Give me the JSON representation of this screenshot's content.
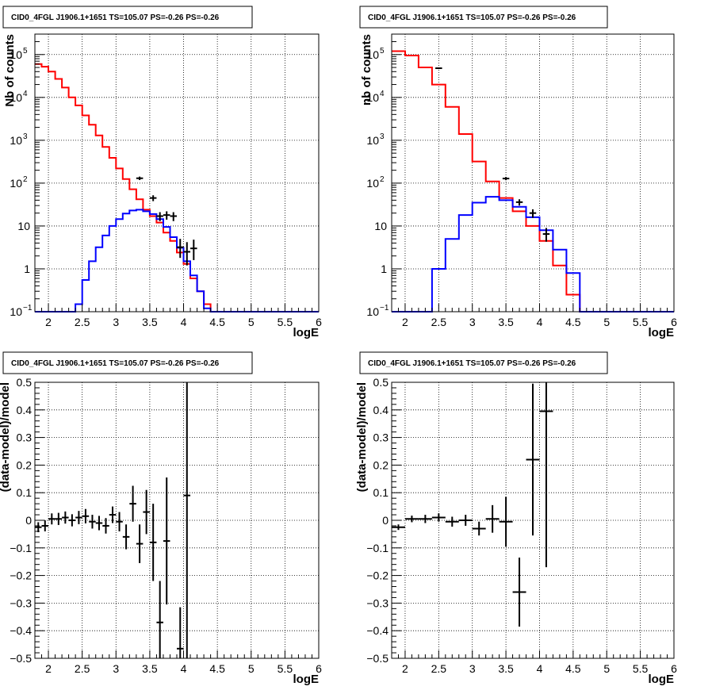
{
  "page_title": "CID0_4FGL J1906.1+1651 TS=105.07 PS=-0.26 PS=-0.26",
  "colors": {
    "model_total": "#ff0000",
    "model_source": "#0000ff",
    "data": "#000000",
    "grid": "#000000"
  },
  "chart_data": [
    {
      "id": "counts-left",
      "type": "line",
      "title": "CID0_4FGL J1906.1+1651 TS=105.07 PS=-0.26 PS=-0.26",
      "xlabel": "logE",
      "ylabel": "Nb of counts",
      "xlim": [
        1.8,
        6
      ],
      "ylim": [
        0.1,
        300000
      ],
      "yscale": "log",
      "grid": true,
      "x_ticks": [
        "2",
        "2.5",
        "3",
        "3.5",
        "4",
        "4.5",
        "5",
        "5.5",
        "6"
      ],
      "y_ticks": [
        {
          "value": 0.1,
          "label": "10",
          "sup": "−1"
        },
        {
          "value": 1,
          "label": "1",
          "sup": ""
        },
        {
          "value": 10,
          "label": "10",
          "sup": ""
        },
        {
          "value": 100,
          "label": "10",
          "sup": "2"
        },
        {
          "value": 1000,
          "label": "10",
          "sup": "3"
        },
        {
          "value": 10000,
          "label": "10",
          "sup": "4"
        },
        {
          "value": 100000,
          "label": "10",
          "sup": "5"
        }
      ],
      "bin_edges": [
        1.8,
        1.9,
        2.0,
        2.1,
        2.2,
        2.3,
        2.4,
        2.5,
        2.6,
        2.7,
        2.8,
        2.9,
        3.0,
        3.1,
        3.2,
        3.3,
        3.4,
        3.5,
        3.6,
        3.7,
        3.8,
        3.9,
        4.0,
        4.1,
        4.2,
        4.3,
        4.4,
        4.5,
        4.6,
        4.7,
        4.8,
        4.9,
        5.0,
        5.1,
        5.2,
        5.3,
        5.4,
        5.5,
        5.6,
        5.7,
        5.8,
        5.9,
        6.0
      ],
      "series": [
        {
          "name": "",
          "role": "model_total",
          "style": "step",
          "values": [
            60000,
            52000,
            40000,
            27000,
            17000,
            10000,
            6500,
            3800,
            2300,
            1300,
            700,
            390,
            220,
            125,
            72,
            42,
            24,
            17,
            12,
            7,
            4.5,
            2.4,
            1.3,
            0.6,
            0.3,
            0.15,
            0.1,
            0.1,
            0.1,
            0.1,
            0.1,
            0.1,
            0.1,
            0.1,
            0.1,
            0.1,
            0.1,
            0.1,
            0.1,
            0.1,
            0.1,
            0.1
          ]
        },
        {
          "name": "",
          "role": "model_source",
          "style": "step",
          "values": [
            0.1,
            0.1,
            0.1,
            0.1,
            0.1,
            0.1,
            0.15,
            0.55,
            1.5,
            3.2,
            6,
            10,
            14.5,
            19.5,
            23,
            24,
            22,
            19,
            14.5,
            9.5,
            5.5,
            3.1,
            1.5,
            0.7,
            0.3,
            0.12,
            0.1,
            0.1,
            0.1,
            0.1,
            0.1,
            0.1,
            0.1,
            0.1,
            0.1,
            0.1,
            0.1,
            0.1,
            0.1,
            0.1,
            0.1,
            0.1
          ]
        },
        {
          "name": "",
          "role": "data",
          "style": "errorbar",
          "points": [
            {
              "x": 3.35,
              "y": 130,
              "ylo": 118,
              "yhi": 142
            },
            {
              "x": 3.55,
              "y": 45,
              "ylo": 38,
              "yhi": 52
            },
            {
              "x": 3.65,
              "y": 17,
              "ylo": 13,
              "yhi": 21
            },
            {
              "x": 3.75,
              "y": 18,
              "ylo": 14,
              "yhi": 22
            },
            {
              "x": 3.85,
              "y": 17,
              "ylo": 13,
              "yhi": 21
            },
            {
              "x": 3.95,
              "y": 3.2,
              "ylo": 1.8,
              "yhi": 5
            },
            {
              "x": 4.05,
              "y": 2.5,
              "ylo": 1.2,
              "yhi": 4.2
            },
            {
              "x": 4.15,
              "y": 3,
              "ylo": 1.6,
              "yhi": 4.8
            }
          ]
        }
      ]
    },
    {
      "id": "counts-right",
      "type": "line",
      "title": "CID0_4FGL J1906.1+1651 TS=105.07 PS=-0.26 PS=-0.26",
      "xlabel": "logE",
      "ylabel": "nb of counts",
      "xlim": [
        1.8,
        6
      ],
      "ylim": [
        0.1,
        300000
      ],
      "yscale": "log",
      "grid": true,
      "x_ticks": [
        "2",
        "2.5",
        "3",
        "3.5",
        "4",
        "4.5",
        "5",
        "5.5",
        "6"
      ],
      "y_ticks": [
        {
          "value": 0.1,
          "label": "10",
          "sup": "−1"
        },
        {
          "value": 1,
          "label": "1",
          "sup": ""
        },
        {
          "value": 10,
          "label": "10",
          "sup": ""
        },
        {
          "value": 100,
          "label": "10",
          "sup": "2"
        },
        {
          "value": 1000,
          "label": "10",
          "sup": "3"
        },
        {
          "value": 10000,
          "label": "10",
          "sup": "4"
        },
        {
          "value": 100000,
          "label": "10",
          "sup": "5"
        }
      ],
      "bin_edges": [
        1.8,
        2.0,
        2.2,
        2.4,
        2.6,
        2.8,
        3.0,
        3.2,
        3.4,
        3.6,
        3.8,
        4.0,
        4.2,
        4.4,
        4.6,
        4.8,
        5.0,
        5.2,
        5.4,
        5.6,
        5.8,
        6.0
      ],
      "series": [
        {
          "name": "",
          "role": "model_total",
          "style": "step",
          "values": [
            120000,
            95000,
            50000,
            20000,
            6000,
            1400,
            320,
            110,
            45,
            22,
            10,
            4.5,
            1.2,
            0.25,
            0.1,
            0.1,
            0.1,
            0.1,
            0.1,
            0.1,
            0.1
          ]
        },
        {
          "name": "",
          "role": "model_source",
          "style": "step",
          "values": [
            0.1,
            0.1,
            0.1,
            1,
            5,
            18,
            35,
            48,
            40,
            28,
            16,
            8,
            2.8,
            0.8,
            0.1,
            0.1,
            0.1,
            0.1,
            0.1,
            0.1,
            0.1
          ]
        },
        {
          "name": "",
          "role": "data",
          "style": "errorbar",
          "points": [
            {
              "x": 2.5,
              "y": 48000,
              "ylo": 46500,
              "yhi": 49500
            },
            {
              "x": 3.5,
              "y": 128,
              "ylo": 117,
              "yhi": 139
            },
            {
              "x": 3.7,
              "y": 36,
              "ylo": 30,
              "yhi": 42
            },
            {
              "x": 3.9,
              "y": 20,
              "ylo": 15.5,
              "yhi": 24.5
            },
            {
              "x": 4.1,
              "y": 6.5,
              "ylo": 4.3,
              "yhi": 9
            }
          ]
        }
      ]
    },
    {
      "id": "residuals-left",
      "type": "scatter",
      "title": "CID0_4FGL J1906.1+1651 TS=105.07 PS=-0.26 PS=-0.26",
      "xlabel": "logE",
      "ylabel": "(data-model)/model",
      "xlim": [
        1.8,
        6
      ],
      "ylim": [
        -0.5,
        0.5
      ],
      "grid": true,
      "x_ticks": [
        "2",
        "2.5",
        "3",
        "3.5",
        "4",
        "4.5",
        "5",
        "5.5",
        "6"
      ],
      "y_ticks": [
        "−0.5",
        "−0.4",
        "−0.3",
        "−0.2",
        "−0.1",
        "0",
        "0.1",
        "0.2",
        "0.3",
        "0.4",
        "0.5"
      ],
      "x_half_width": 0.05,
      "series": [
        {
          "name": "",
          "role": "data",
          "points": [
            {
              "x": 1.85,
              "y": -0.025,
              "err": 0.018
            },
            {
              "x": 1.95,
              "y": -0.02,
              "err": 0.02
            },
            {
              "x": 2.05,
              "y": 0.005,
              "err": 0.02
            },
            {
              "x": 2.15,
              "y": 0.005,
              "err": 0.022
            },
            {
              "x": 2.25,
              "y": 0.01,
              "err": 0.022
            },
            {
              "x": 2.35,
              "y": 0.0,
              "err": 0.022
            },
            {
              "x": 2.45,
              "y": 0.01,
              "err": 0.024
            },
            {
              "x": 2.55,
              "y": 0.015,
              "err": 0.026
            },
            {
              "x": 2.65,
              "y": -0.005,
              "err": 0.025
            },
            {
              "x": 2.75,
              "y": -0.01,
              "err": 0.026
            },
            {
              "x": 2.85,
              "y": -0.02,
              "err": 0.028
            },
            {
              "x": 2.95,
              "y": 0.02,
              "err": 0.03
            },
            {
              "x": 3.05,
              "y": -0.005,
              "err": 0.035
            },
            {
              "x": 3.15,
              "y": -0.06,
              "err": 0.045
            },
            {
              "x": 3.25,
              "y": 0.06,
              "err": 0.065
            },
            {
              "x": 3.35,
              "y": -0.085,
              "err": 0.07
            },
            {
              "x": 3.45,
              "y": 0.03,
              "err": 0.08
            },
            {
              "x": 3.55,
              "y": -0.08,
              "err": 0.14
            },
            {
              "x": 3.65,
              "y": -0.37,
              "err": 0.15
            },
            {
              "x": 3.75,
              "y": -0.075,
              "err": 0.23
            },
            {
              "x": 3.95,
              "y": -0.465,
              "err": 0.15
            },
            {
              "x": 4.05,
              "y": 0.09,
              "err": 0.6
            }
          ]
        }
      ]
    },
    {
      "id": "residuals-right",
      "type": "scatter",
      "title": "CID0_4FGL J1906.1+1651 TS=105.07 PS=-0.26 PS=-0.26",
      "xlabel": "logE",
      "ylabel": "(data-model)/model",
      "xlim": [
        1.8,
        6
      ],
      "ylim": [
        -0.5,
        0.5
      ],
      "grid": true,
      "x_ticks": [
        "2",
        "2.5",
        "3",
        "3.5",
        "4",
        "4.5",
        "5",
        "5.5",
        "6"
      ],
      "y_ticks": [
        "−0.5",
        "−0.4",
        "−0.3",
        "−0.2",
        "−0.1",
        "0",
        "0.1",
        "0.2",
        "0.3",
        "0.4",
        "0.5"
      ],
      "x_half_width": 0.1,
      "series": [
        {
          "name": "",
          "role": "data",
          "points": [
            {
              "x": 1.9,
              "y": -0.025,
              "err": 0.01
            },
            {
              "x": 2.1,
              "y": 0.005,
              "err": 0.012
            },
            {
              "x": 2.3,
              "y": 0.005,
              "err": 0.015
            },
            {
              "x": 2.5,
              "y": 0.01,
              "err": 0.015
            },
            {
              "x": 2.7,
              "y": -0.005,
              "err": 0.018
            },
            {
              "x": 2.9,
              "y": 0.0,
              "err": 0.02
            },
            {
              "x": 3.1,
              "y": -0.03,
              "err": 0.025
            },
            {
              "x": 3.3,
              "y": 0.005,
              "err": 0.05
            },
            {
              "x": 3.5,
              "y": -0.005,
              "err": 0.09
            },
            {
              "x": 3.7,
              "y": -0.26,
              "err": 0.125
            },
            {
              "x": 3.9,
              "y": 0.22,
              "err": 0.275
            },
            {
              "x": 4.1,
              "y": 0.395,
              "err": 0.565
            }
          ]
        }
      ]
    }
  ]
}
